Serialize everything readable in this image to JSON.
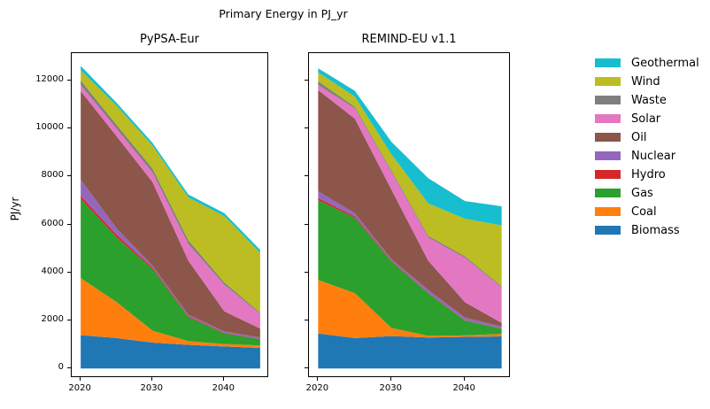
{
  "figure": {
    "title": "Primary Energy in PJ_yr",
    "ylabel": "PJ/yr",
    "background": "#ffffff",
    "text_color": "#000000"
  },
  "legend": {
    "position": "right-outside-top",
    "entries": [
      {
        "label": "Geothermal",
        "color": "#17becf"
      },
      {
        "label": "Wind",
        "color": "#bcbd22"
      },
      {
        "label": "Waste",
        "color": "#7f7f7f"
      },
      {
        "label": "Solar",
        "color": "#e377c2"
      },
      {
        "label": "Oil",
        "color": "#8c564b"
      },
      {
        "label": "Nuclear",
        "color": "#9467bd"
      },
      {
        "label": "Hydro",
        "color": "#d62728"
      },
      {
        "label": "Gas",
        "color": "#2ca02c"
      },
      {
        "label": "Coal",
        "color": "#ff7f0e"
      },
      {
        "label": "Biomass",
        "color": "#1f77b4"
      }
    ]
  },
  "chart_data": [
    {
      "type": "area",
      "stacked": true,
      "title": "PyPSA-Eur",
      "ylabel": "PJ/yr",
      "x": [
        2020,
        2025,
        2030,
        2035,
        2040,
        2045
      ],
      "x_ticks": [
        2020,
        2030,
        2040
      ],
      "y_ticks": [
        0,
        2000,
        4000,
        6000,
        8000,
        10000,
        12000
      ],
      "xlim": [
        2018.75,
        2046.25
      ],
      "ylim": [
        -395,
        13140
      ],
      "grid": false,
      "series": [
        {
          "name": "Biomass",
          "color": "#1f77b4",
          "values": [
            1390,
            1270,
            1080,
            990,
            920,
            860
          ]
        },
        {
          "name": "Coal",
          "color": "#ff7f0e",
          "values": [
            2380,
            1500,
            500,
            150,
            100,
            100
          ]
        },
        {
          "name": "Gas",
          "color": "#2ca02c",
          "values": [
            3300,
            2700,
            2570,
            1000,
            450,
            260
          ]
        },
        {
          "name": "Hydro",
          "color": "#d62728",
          "values": [
            120,
            110,
            60,
            40,
            25,
            15
          ]
        },
        {
          "name": "Nuclear",
          "color": "#9467bd",
          "values": [
            680,
            260,
            80,
            60,
            50,
            60
          ]
        },
        {
          "name": "Oil",
          "color": "#8c564b",
          "values": [
            3690,
            3840,
            3480,
            2250,
            840,
            370
          ]
        },
        {
          "name": "Solar",
          "color": "#e377c2",
          "values": [
            250,
            310,
            400,
            700,
            1110,
            620
          ]
        },
        {
          "name": "Waste",
          "color": "#7f7f7f",
          "values": [
            190,
            160,
            160,
            150,
            90,
            40
          ]
        },
        {
          "name": "Wind",
          "color": "#bcbd22",
          "values": [
            430,
            800,
            960,
            1790,
            2770,
            2500
          ]
        },
        {
          "name": "Geothermal",
          "color": "#17becf",
          "values": [
            180,
            120,
            110,
            120,
            120,
            120
          ]
        }
      ]
    },
    {
      "type": "area",
      "stacked": true,
      "title": "REMIND-EU v1.1",
      "ylabel": "PJ/yr",
      "x": [
        2020,
        2025,
        2030,
        2035,
        2040,
        2045
      ],
      "x_ticks": [
        2020,
        2030,
        2040
      ],
      "y_ticks": [
        0,
        2000,
        4000,
        6000,
        8000,
        10000,
        12000
      ],
      "xlim": [
        2018.75,
        2046.25
      ],
      "ylim": [
        -395,
        13140
      ],
      "grid": false,
      "series": [
        {
          "name": "Biomass",
          "color": "#1f77b4",
          "values": [
            1460,
            1270,
            1350,
            1290,
            1320,
            1340
          ]
        },
        {
          "name": "Coal",
          "color": "#ff7f0e",
          "values": [
            2230,
            1870,
            340,
            70,
            60,
            100
          ]
        },
        {
          "name": "Gas",
          "color": "#2ca02c",
          "values": [
            3320,
            3140,
            2770,
            1780,
            620,
            220
          ]
        },
        {
          "name": "Hydro",
          "color": "#d62728",
          "values": [
            90,
            60,
            30,
            20,
            15,
            10
          ]
        },
        {
          "name": "Nuclear",
          "color": "#9467bd",
          "values": [
            280,
            130,
            60,
            120,
            110,
            80
          ]
        },
        {
          "name": "Oil",
          "color": "#8c564b",
          "values": [
            4220,
            3940,
            2890,
            1210,
            640,
            150
          ]
        },
        {
          "name": "Solar",
          "color": "#e377c2",
          "values": [
            210,
            430,
            740,
            980,
            1850,
            1480
          ]
        },
        {
          "name": "Waste",
          "color": "#7f7f7f",
          "values": [
            160,
            60,
            60,
            60,
            60,
            40
          ]
        },
        {
          "name": "Wind",
          "color": "#bcbd22",
          "values": [
            370,
            430,
            680,
            1350,
            1570,
            2540
          ]
        },
        {
          "name": "Geothermal",
          "color": "#17bec f",
          "values": [
            170,
            240,
            520,
            1050,
            730,
            800
          ]
        }
      ]
    }
  ]
}
